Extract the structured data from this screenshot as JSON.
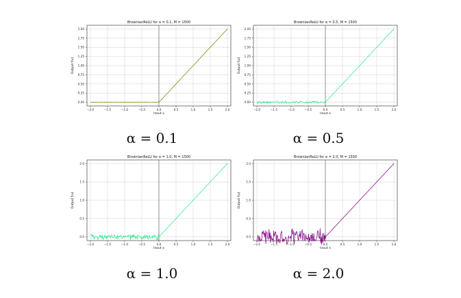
{
  "chart_data": [
    {
      "type": "line",
      "title": "BrownianReLU for α = 0.1, M = 1500",
      "xlabel": "Input x",
      "ylabel": "Output f(x)",
      "xlim": [
        -2.1,
        2.1
      ],
      "ylim": [
        -0.1,
        2.1
      ],
      "xticks": [
        "−2.0",
        "−1.5",
        "−1.0",
        "−0.5",
        "0.0",
        "0.5",
        "1.0",
        "1.5",
        "2.0"
      ],
      "yticks": [
        "0.00",
        "0.25",
        "0.50",
        "0.75",
        "1.00",
        "1.25",
        "1.50",
        "1.75",
        "2.00"
      ],
      "grid": true,
      "series": [
        {
          "color": "#808000",
          "x": [
            -2.0,
            0.0,
            2.0
          ],
          "y": [
            0.0,
            0.0,
            2.0
          ],
          "noise_amplitude": 0.004
        }
      ],
      "caption": "α = 0.1"
    },
    {
      "type": "line",
      "title": "BrownianReLU for α = 0.5, M = 1500",
      "xlabel": "Input x",
      "ylabel": "Output f(x)",
      "xlim": [
        -2.1,
        2.1
      ],
      "ylim": [
        -0.1,
        2.1
      ],
      "xticks": [
        "−2.0",
        "−1.5",
        "−1.0",
        "−0.5",
        "0.0",
        "0.5",
        "1.0",
        "1.5",
        "2.0"
      ],
      "yticks": [
        "0.00",
        "0.25",
        "0.50",
        "0.75",
        "1.00",
        "1.25",
        "1.50",
        "1.75",
        "2.00"
      ],
      "grid": true,
      "series": [
        {
          "color": "#2ee88a",
          "x": [
            -2.0,
            0.0,
            2.0
          ],
          "y": [
            0.0,
            0.0,
            2.0
          ],
          "noise_amplitude": 0.02
        }
      ],
      "caption": "α = 0.5"
    },
    {
      "type": "line",
      "title": "BrownianReLU for α = 1.0, M = 1500",
      "xlabel": "Input x",
      "ylabel": "Output f(x)",
      "xlim": [
        -2.1,
        2.1
      ],
      "ylim": [
        -0.1,
        2.1
      ],
      "xticks": [
        "−2.0",
        "−1.5",
        "−1.0",
        "−0.5",
        "0.0",
        "0.5",
        "1.0",
        "1.5",
        "2.0"
      ],
      "yticks": [
        "0.0",
        "0.5",
        "1.0",
        "1.5",
        "2.0"
      ],
      "grid": true,
      "series": [
        {
          "color": "#2ee88a",
          "x": [
            -2.0,
            0.0,
            2.0
          ],
          "y": [
            0.0,
            0.0,
            2.0
          ],
          "noise_amplitude": 0.045
        }
      ],
      "caption": "α = 1.0"
    },
    {
      "type": "line",
      "title": "BrownianReLU for α = 2.0, M = 1500",
      "xlabel": "Input x",
      "ylabel": "Output f(x)",
      "xlim": [
        -2.1,
        2.1
      ],
      "ylim": [
        -0.1,
        2.1
      ],
      "xticks": [
        "−2.0",
        "−1.5",
        "−1.0",
        "−0.5",
        "0.0",
        "0.5",
        "1.0",
        "1.5",
        "2.0"
      ],
      "yticks": [
        "0.0",
        "0.5",
        "1.0",
        "1.5",
        "2.0"
      ],
      "grid": true,
      "series": [
        {
          "color": "#800080",
          "x": [
            -2.0,
            0.0,
            2.0
          ],
          "y": [
            0.0,
            0.0,
            2.0
          ],
          "noise_amplitude": 0.12
        }
      ],
      "caption": "α = 2.0"
    }
  ]
}
